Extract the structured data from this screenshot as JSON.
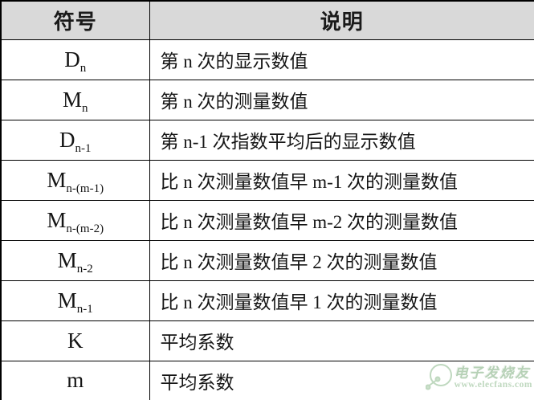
{
  "table": {
    "headers": [
      {
        "label": "符号"
      },
      {
        "label": "说明"
      }
    ],
    "rows": [
      {
        "symbol_base": "D",
        "symbol_sub": "n",
        "description": "第 n 次的显示数值"
      },
      {
        "symbol_base": "M",
        "symbol_sub": "n",
        "description": "第 n 次的测量数值"
      },
      {
        "symbol_base": "D",
        "symbol_sub": "n-1",
        "description": "第 n-1 次指数平均后的显示数值"
      },
      {
        "symbol_base": "M",
        "symbol_sub": "n-(m-1)",
        "description": "比 n 次测量数值早 m-1 次的测量数值"
      },
      {
        "symbol_base": "M",
        "symbol_sub": "n-(m-2)",
        "description": "比 n 次测量数值早 m-2 次的测量数值"
      },
      {
        "symbol_base": "M",
        "symbol_sub": "n-2",
        "description": "比 n 次测量数值早 2 次的测量数值"
      },
      {
        "symbol_base": "M",
        "symbol_sub": "n-1",
        "description": "比 n 次测量数值早 1 次的测量数值"
      },
      {
        "symbol_base": "K",
        "symbol_sub": "",
        "description": "平均系数"
      },
      {
        "symbol_base": "m",
        "symbol_sub": "",
        "description": "平均系数"
      }
    ]
  },
  "watermark": {
    "brand": "电子发烧友",
    "url": "www.elecfans.com",
    "icon": "elecfans-circuit-logo",
    "color": "#aac9aa"
  },
  "colors": {
    "header_bg": "#d9d9d9",
    "border": "#000000",
    "text": "#151515"
  }
}
